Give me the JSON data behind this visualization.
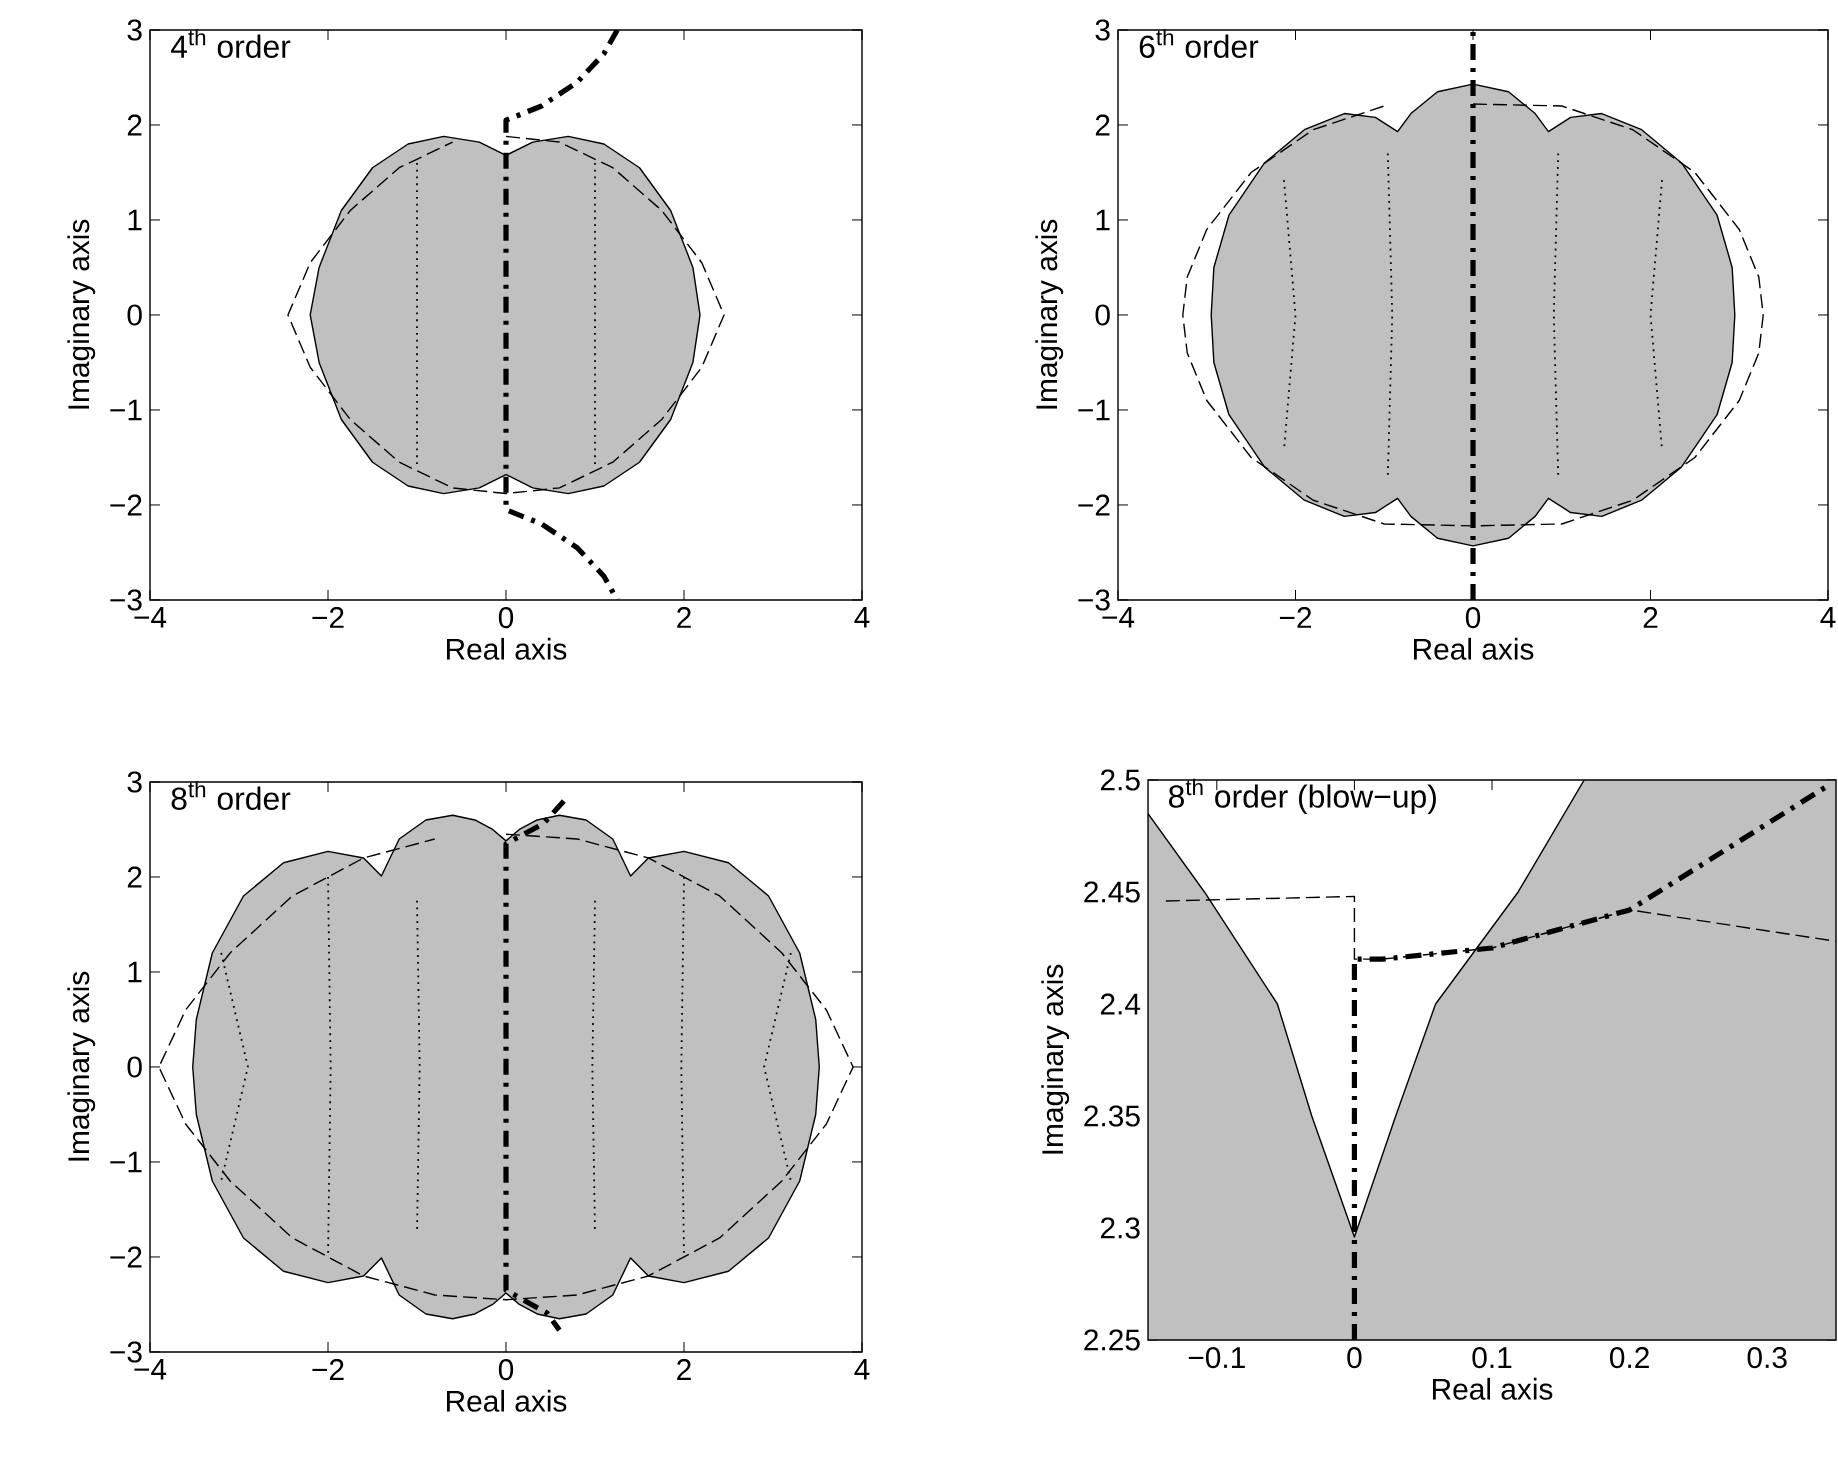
{
  "chart_data": [
    {
      "type": "line",
      "title": "4$^{th}$ order",
      "xlabel": "Real axis",
      "ylabel": "Imaginary axis",
      "xlim": [
        -4,
        4
      ],
      "ylim": [
        -3,
        3
      ],
      "xticks": [
        {
          "value": -4,
          "label": "−4"
        },
        {
          "value": -2,
          "label": "−2"
        },
        0,
        2,
        4
      ],
      "yticks": [
        {
          "value": -3,
          "label": "−3"
        },
        {
          "value": -2,
          "label": "−2"
        },
        {
          "value": -1,
          "label": "−1"
        },
        0,
        1,
        2,
        3
      ],
      "series": [
        {
          "type": "area",
          "color": "#c0c0c0",
          "x": [
            0,
            0.3,
            0.7,
            1.1,
            1.5,
            1.85,
            2.1,
            2.18,
            2.1,
            1.85,
            1.5,
            1.1,
            0.7,
            0.3,
            0,
            -0.3,
            -0.7,
            -1.1,
            -1.5,
            -1.85,
            -2.1,
            -2.2,
            -2.1,
            -1.85,
            -1.5,
            -1.1,
            -0.7,
            -0.3,
            0
          ],
          "values": [
            1.68,
            1.82,
            1.88,
            1.8,
            1.55,
            1.1,
            0.5,
            0,
            -0.5,
            -1.1,
            -1.55,
            -1.8,
            -1.88,
            -1.82,
            -1.68,
            -1.82,
            -1.88,
            -1.8,
            -1.55,
            -1.1,
            -0.5,
            0,
            0.5,
            1.1,
            1.55,
            1.8,
            1.88,
            1.82,
            1.68
          ]
        },
        {
          "type": "line",
          "line_style": "dashed",
          "color": "#000000",
          "x": [
            0,
            0.6,
            1.2,
            1.75,
            2.2,
            2.45,
            2.2,
            1.75,
            1.2,
            0.6,
            0,
            -0.6,
            -1.2,
            -1.75,
            -2.2,
            -2.45,
            -2.2,
            -1.75,
            -1.2,
            -0.6
          ],
          "values": [
            1.88,
            1.82,
            1.55,
            1.1,
            0.55,
            0,
            -0.55,
            -1.1,
            -1.55,
            -1.82,
            -1.88,
            -1.82,
            -1.55,
            -1.1,
            -0.55,
            0,
            0.55,
            1.1,
            1.55,
            1.82
          ]
        },
        {
          "type": "line",
          "line_style": "dotted",
          "color": "#000000",
          "x": [
            -1,
            -1
          ],
          "values": [
            1.6,
            -1.6
          ]
        },
        {
          "type": "line",
          "line_style": "dotted",
          "color": "#000000",
          "x": [
            1,
            1
          ],
          "values": [
            1.6,
            -1.6
          ]
        },
        {
          "type": "line",
          "line_style": "dashdot",
          "color": "#000000",
          "x": [
            1.25,
            1.1,
            0.8,
            0.4,
            0,
            0,
            0.4,
            0.8,
            1.1,
            1.25
          ],
          "values": [
            3,
            2.75,
            2.45,
            2.2,
            2.05,
            -2.05,
            -2.2,
            -2.45,
            -2.75,
            -3
          ]
        }
      ]
    },
    {
      "type": "line",
      "title": "6$^{th}$ order",
      "xlabel": "Real axis",
      "ylabel": "Imaginary axis",
      "xlim": [
        -4,
        4
      ],
      "ylim": [
        -3,
        3
      ],
      "xticks": [
        {
          "value": -4,
          "label": "−4"
        },
        {
          "value": -2,
          "label": "−2"
        },
        0,
        2,
        4
      ],
      "yticks": [
        {
          "value": -3,
          "label": "−3"
        },
        {
          "value": -2,
          "label": "−2"
        },
        {
          "value": -1,
          "label": "−1"
        },
        0,
        1,
        2,
        3
      ],
      "series": [
        {
          "type": "area",
          "color": "#c0c0c0",
          "x": [
            0,
            0.4,
            0.7,
            0.85,
            1.1,
            1.45,
            1.9,
            2.35,
            2.75,
            2.92,
            2.95,
            2.92,
            2.75,
            2.35,
            1.9,
            1.45,
            1.1,
            0.85,
            0.7,
            0.4,
            0,
            -0.4,
            -0.7,
            -0.85,
            -1.1,
            -1.45,
            -1.9,
            -2.35,
            -2.75,
            -2.92,
            -2.95,
            -2.92,
            -2.75,
            -2.35,
            -1.9,
            -1.45,
            -1.1,
            -0.85,
            -0.7,
            -0.4,
            0
          ],
          "values": [
            2.43,
            2.35,
            2.12,
            1.93,
            2.08,
            2.12,
            1.95,
            1.6,
            1.05,
            0.5,
            0,
            -0.5,
            -1.05,
            -1.6,
            -1.95,
            -2.12,
            -2.08,
            -1.93,
            -2.12,
            -2.35,
            -2.43,
            -2.35,
            -2.12,
            -1.93,
            -2.08,
            -2.12,
            -1.95,
            -1.6,
            -1.05,
            -0.5,
            0,
            0.5,
            1.05,
            1.6,
            1.95,
            2.12,
            2.08,
            1.93,
            2.12,
            2.35,
            2.43
          ]
        },
        {
          "type": "line",
          "line_style": "dashed",
          "color": "#000000",
          "x": [
            0,
            1,
            1.8,
            2.5,
            3.0,
            3.22,
            3.27,
            3.22,
            3.0,
            2.5,
            1.8,
            1,
            0,
            -1,
            -1.8,
            -2.5,
            -3.0,
            -3.22,
            -3.27,
            -3.22,
            -3.0,
            -2.5,
            -1.8,
            -1
          ],
          "values": [
            2.22,
            2.2,
            1.95,
            1.5,
            0.9,
            0.4,
            0,
            -0.4,
            -0.9,
            -1.5,
            -1.95,
            -2.2,
            -2.22,
            -2.2,
            -1.95,
            -1.5,
            -0.9,
            -0.4,
            0,
            0.4,
            0.9,
            1.5,
            1.95,
            2.2
          ]
        },
        {
          "type": "line",
          "line_style": "dotted",
          "color": "#000000",
          "x": [
            -2.13,
            -2.0,
            -2.13
          ],
          "values": [
            1.42,
            0,
            -1.42
          ]
        },
        {
          "type": "line",
          "line_style": "dotted",
          "color": "#000000",
          "x": [
            -0.96,
            -0.91,
            -0.96
          ],
          "values": [
            1.7,
            0,
            -1.7
          ]
        },
        {
          "type": "line",
          "line_style": "dotted",
          "color": "#000000",
          "x": [
            0.96,
            0.91,
            0.96
          ],
          "values": [
            1.7,
            0,
            -1.7
          ]
        },
        {
          "type": "line",
          "line_style": "dotted",
          "color": "#000000",
          "x": [
            2.13,
            2.0,
            2.13
          ],
          "values": [
            1.42,
            0,
            -1.42
          ]
        }
      ],
      "ref_lines": [
        {
          "axis": "x",
          "value": 0,
          "line_style": "dashdot",
          "color": "#000000"
        }
      ]
    },
    {
      "type": "line",
      "title": "8$^{th}$ order",
      "xlabel": "Real axis",
      "ylabel": "Imaginary axis",
      "xlim": [
        -4,
        4
      ],
      "ylim": [
        -3,
        3
      ],
      "xticks": [
        {
          "value": -4,
          "label": "−4"
        },
        {
          "value": -2,
          "label": "−2"
        },
        0,
        2,
        4
      ],
      "yticks": [
        {
          "value": -3,
          "label": "−3"
        },
        {
          "value": -2,
          "label": "−2"
        },
        {
          "value": -1,
          "label": "−1"
        },
        0,
        1,
        2,
        3
      ],
      "series": [
        {
          "type": "area",
          "color": "#c0c0c0",
          "x": [
            0,
            0.15,
            0.35,
            0.6,
            0.9,
            1.2,
            1.4,
            1.6,
            2.0,
            2.5,
            2.95,
            3.3,
            3.48,
            3.52,
            3.48,
            3.3,
            2.95,
            2.5,
            2.0,
            1.6,
            1.4,
            1.2,
            0.9,
            0.6,
            0.35,
            0.15,
            0,
            -0.15,
            -0.35,
            -0.6,
            -0.9,
            -1.2,
            -1.4,
            -1.6,
            -2.0,
            -2.5,
            -2.95,
            -3.3,
            -3.48,
            -3.52,
            -3.48,
            -3.3,
            -2.95,
            -2.5,
            -2.0,
            -1.6,
            -1.4,
            -1.2,
            -0.9,
            -0.6,
            -0.35,
            -0.15,
            0
          ],
          "values": [
            2.38,
            2.5,
            2.6,
            2.65,
            2.6,
            2.4,
            2.01,
            2.2,
            2.27,
            2.15,
            1.8,
            1.2,
            0.5,
            0,
            -0.5,
            -1.2,
            -1.8,
            -2.15,
            -2.27,
            -2.2,
            -2.01,
            -2.4,
            -2.6,
            -2.65,
            -2.6,
            -2.5,
            -2.38,
            -2.5,
            -2.6,
            -2.65,
            -2.6,
            -2.4,
            -2.01,
            -2.2,
            -2.27,
            -2.15,
            -1.8,
            -1.2,
            -0.5,
            0,
            0.5,
            1.2,
            1.8,
            2.15,
            2.27,
            2.2,
            2.01,
            2.4,
            2.6,
            2.65,
            2.6,
            2.5,
            2.38
          ]
        },
        {
          "type": "line",
          "line_style": "dashed",
          "color": "#000000",
          "x": [
            0,
            0.8,
            1.6,
            2.4,
            3.1,
            3.6,
            3.9,
            3.6,
            3.1,
            2.4,
            1.6,
            0.8,
            0,
            -0.8,
            -1.6,
            -2.4,
            -3.1,
            -3.6,
            -3.9,
            -3.6,
            -3.1,
            -2.4,
            -1.6,
            -0.8
          ],
          "values": [
            2.45,
            2.4,
            2.2,
            1.8,
            1.2,
            0.6,
            0,
            -0.6,
            -1.2,
            -1.8,
            -2.2,
            -2.4,
            -2.45,
            -2.4,
            -2.2,
            -1.8,
            -1.2,
            -0.6,
            0,
            0.6,
            1.2,
            1.8,
            2.2,
            2.4
          ]
        },
        {
          "type": "line",
          "line_style": "dotted",
          "color": "#000000",
          "x": [
            -3.2,
            -2.9,
            -3.2
          ],
          "values": [
            1.2,
            0,
            -1.2
          ]
        },
        {
          "type": "line",
          "line_style": "dotted",
          "color": "#000000",
          "x": [
            -2.0,
            -1.97,
            -2.0
          ],
          "values": [
            2.0,
            0,
            -2.0
          ]
        },
        {
          "type": "line",
          "line_style": "dotted",
          "color": "#000000",
          "x": [
            -1.0,
            -0.97,
            -1.0
          ],
          "values": [
            1.75,
            0,
            -1.75
          ]
        },
        {
          "type": "line",
          "line_style": "dotted",
          "color": "#000000",
          "x": [
            1.0,
            0.97,
            1.0
          ],
          "values": [
            1.75,
            0,
            -1.75
          ]
        },
        {
          "type": "line",
          "line_style": "dotted",
          "color": "#000000",
          "x": [
            2.0,
            1.97,
            2.0
          ],
          "values": [
            2.0,
            0,
            -2.0
          ]
        },
        {
          "type": "line",
          "line_style": "dotted",
          "color": "#000000",
          "x": [
            3.2,
            2.9,
            3.2
          ],
          "values": [
            1.2,
            0,
            -1.2
          ]
        },
        {
          "type": "line",
          "line_style": "dashdot",
          "color": "#000000",
          "x": [
            0.65,
            0.42,
            0,
            0,
            0.46,
            0.6
          ],
          "values": [
            2.8,
            2.56,
            2.35,
            -2.35,
            -2.59,
            -2.77
          ]
        }
      ]
    },
    {
      "type": "line",
      "title": "8$^{th}$ order (blow−up)",
      "xlabel": "Real axis",
      "ylabel": "Imaginary axis",
      "xlim": [
        -0.15,
        0.35
      ],
      "ylim": [
        2.25,
        2.5
      ],
      "xticks": [
        {
          "value": -0.1,
          "label": "−0.1"
        },
        0,
        0.1,
        0.2,
        0.3
      ],
      "yticks": [
        2.25,
        2.3,
        2.35,
        2.4,
        2.45,
        2.5
      ],
      "series": [
        {
          "type": "area",
          "color": "#c0c0c0",
          "x": [
            -0.15,
            -0.15,
            -0.109,
            -0.056,
            -0.031,
            0,
            0.03,
            0.059,
            0.119,
            0.167,
            0.35,
            0.35,
            -0.15
          ],
          "values": [
            2.25,
            2.485,
            2.45,
            2.4,
            2.35,
            2.296,
            2.35,
            2.4,
            2.45,
            2.5,
            2.5,
            2.25,
            2.25
          ]
        },
        {
          "type": "line",
          "line_style": "dashed",
          "color": "#000000",
          "x": [
            -0.137,
            0,
            0,
            0.02,
            0.1,
            0.2,
            0.35
          ],
          "values": [
            2.446,
            2.448,
            2.42,
            2.42,
            2.425,
            2.442,
            2.428
          ]
        },
        {
          "type": "line",
          "line_style": "dashdot",
          "color": "#000000",
          "x": [
            0,
            0,
            0.02,
            0.1,
            0.2,
            0.343
          ],
          "values": [
            2.25,
            2.42,
            2.42,
            2.425,
            2.442,
            2.497
          ]
        }
      ]
    }
  ]
}
